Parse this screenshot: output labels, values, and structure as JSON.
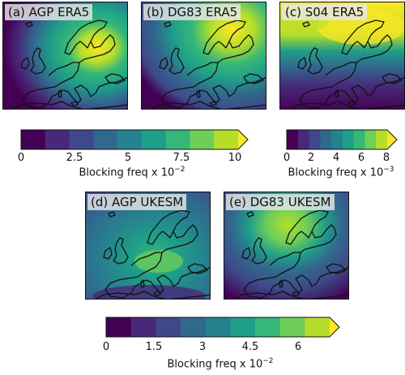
{
  "panels": [
    {
      "label": "(a) AGP ERA5"
    },
    {
      "label": "(b) DG83 ERA5"
    },
    {
      "label": "(c) S04 ERA5"
    },
    {
      "label": "(d) AGP UKESM"
    },
    {
      "label": "(e) DG83 UKESM"
    }
  ],
  "colorbars": [
    {
      "ticks": [
        "0",
        "2.5",
        "5",
        "7.5",
        "10"
      ],
      "title": "Blocking freq x 10",
      "exponent": "−2",
      "colors": [
        "#440154",
        "#482878",
        "#3e4989",
        "#31688e",
        "#26828e",
        "#1f9e89",
        "#35b779",
        "#6ece58",
        "#b5de2b",
        "#fde725"
      ]
    },
    {
      "ticks": [
        "0",
        "2",
        "4",
        "6",
        "8"
      ],
      "title": "Blocking freq x 10",
      "exponent": "−3",
      "colors": [
        "#440154",
        "#482878",
        "#3e4989",
        "#31688e",
        "#26828e",
        "#1f9e89",
        "#35b779",
        "#6ece58",
        "#b5de2b",
        "#fde725"
      ]
    },
    {
      "ticks": [
        "0",
        "1.5",
        "3",
        "4.5",
        "6"
      ],
      "title": "Blocking freq x 10",
      "exponent": "−2",
      "colors": [
        "#440154",
        "#482878",
        "#3e4989",
        "#31688e",
        "#26828e",
        "#1f9e89",
        "#35b779",
        "#6ece58",
        "#b5de2b",
        "#fde725"
      ]
    }
  ]
}
